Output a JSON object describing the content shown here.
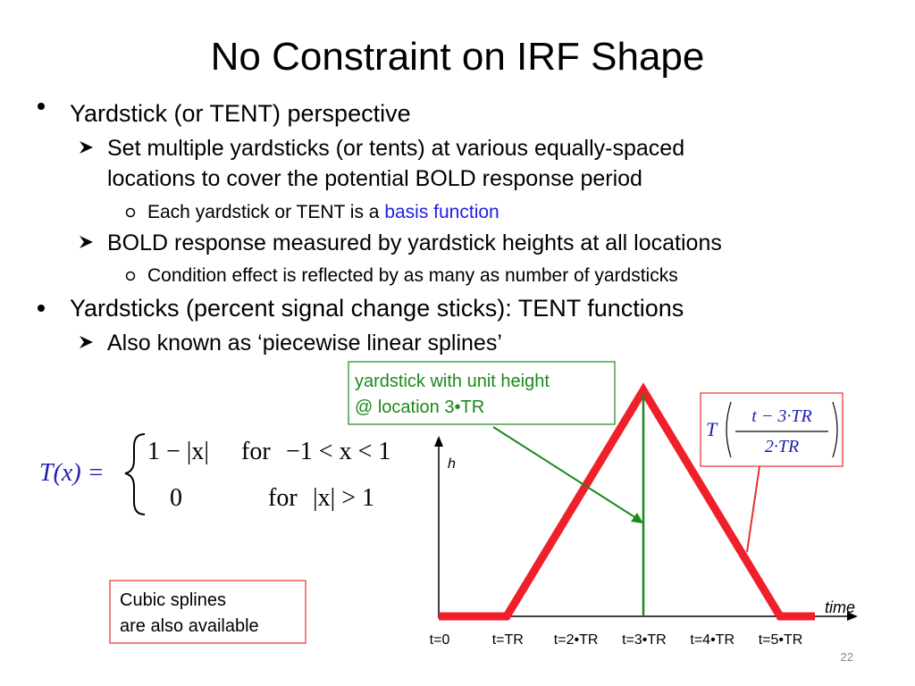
{
  "title": "No Constraint on IRF Shape",
  "content": [
    {
      "text": "Yardstick (or TENT) perspective",
      "items": [
        {
          "lines": [
            "Set multiple yardsticks (or tents) at various equally-spaced",
            "locations to cover the potential BOLD response period"
          ],
          "items": [
            {
              "text": "Each yardstick or TENT is a ",
              "link": "basis function"
            }
          ]
        },
        {
          "lines": [
            "BOLD response measured by yardstick heights at all locations"
          ],
          "items": [
            {
              "text": "Condition effect is reflected by as many as number of yardsticks"
            }
          ]
        }
      ]
    },
    {
      "text": "Yardsticks (percent signal change sticks): TENT functions",
      "items": [
        {
          "lines": [
            "Also known as ‘piecewise linear splines’"
          ]
        }
      ]
    }
  ],
  "equation": {
    "lhs": "T(x) =",
    "case1": "1 − |x|",
    "for1": "for",
    "cond1": "−1 < x < 1",
    "case2": "0",
    "for2": "for",
    "cond2": "|x| > 1"
  },
  "note": [
    "Cubic splines",
    "are also available"
  ],
  "diagram": {
    "y_label": "h",
    "x_label": "time",
    "ticks": [
      "t=0",
      "t=TR",
      "t=2•TR",
      "t=3•TR",
      "t=4•TR",
      "t=5•TR"
    ],
    "callout": [
      "yardstick with unit height",
      "@ location 3•TR"
    ],
    "formula": {
      "name": "T",
      "numerator": "t − 3·TR",
      "denominator": "2·TR"
    }
  },
  "page_number": "22"
}
